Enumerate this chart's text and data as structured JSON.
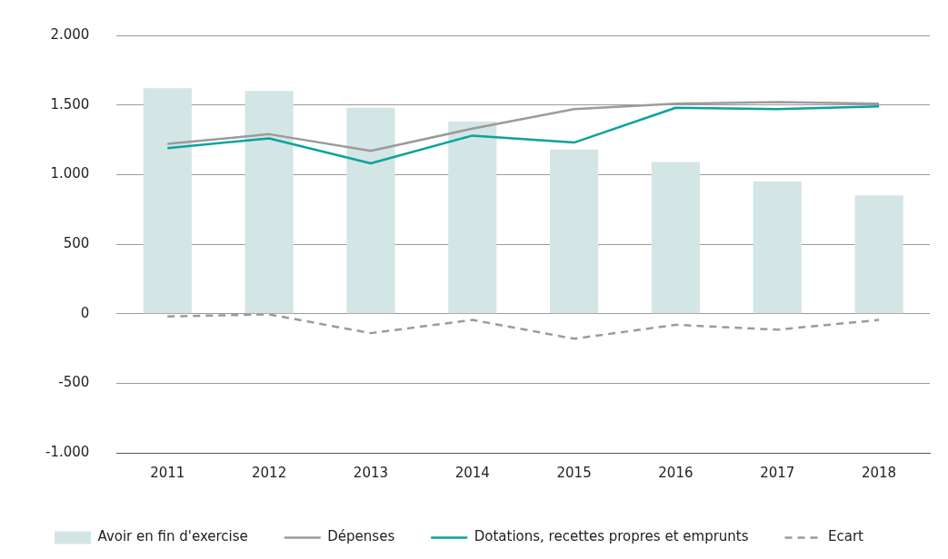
{
  "chart_data": {
    "type": "bar",
    "categories": [
      "2011",
      "2012",
      "2013",
      "2014",
      "2015",
      "2016",
      "2017",
      "2018"
    ],
    "series": [
      {
        "name": "Avoir en fin d'exercise",
        "color": "#d3e5e4",
        "values": [
          1620,
          1600,
          1480,
          1380,
          1180,
          1090,
          950,
          850
        ]
      },
      {
        "name": "Dépenses",
        "type": "line",
        "color": "#9b9b9b",
        "values": [
          1220,
          1290,
          1170,
          1330,
          1470,
          1510,
          1520,
          1510
        ]
      },
      {
        "name": "Dotations, recettes propres et emprunts",
        "type": "line",
        "color": "#0aa39a",
        "values": [
          1190,
          1260,
          1080,
          1280,
          1230,
          1480,
          1470,
          1490
        ]
      },
      {
        "name": "Ecart",
        "type": "line",
        "line_style": "dashed",
        "color": "#9b9b9b",
        "values": [
          -20,
          -5,
          -140,
          -45,
          -180,
          -80,
          -115,
          -45
        ]
      }
    ],
    "ylim": [
      -1000,
      2000
    ],
    "yticks": [
      {
        "value": -1000,
        "label": "-1.000"
      },
      {
        "value": -500,
        "label": "-500"
      },
      {
        "value": 0,
        "label": "0"
      },
      {
        "value": 500,
        "label": "500"
      },
      {
        "value": 1000,
        "label": "1.000"
      },
      {
        "value": 1500,
        "label": "1.500"
      },
      {
        "value": 2000,
        "label": "2.000"
      }
    ],
    "grid": "y",
    "legend": "bottom",
    "marker": "none"
  }
}
